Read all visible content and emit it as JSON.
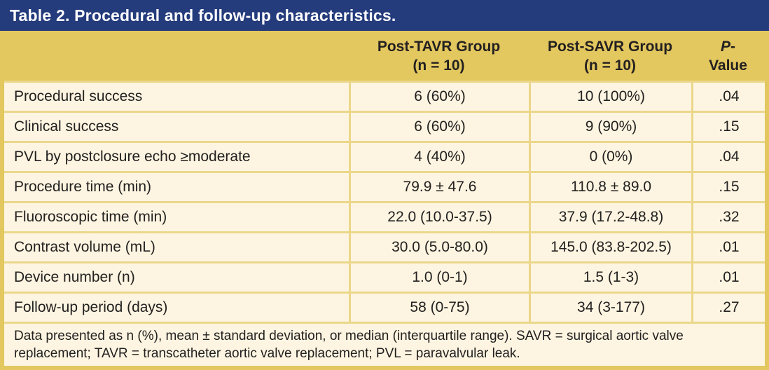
{
  "colors": {
    "title_bar": "#243B7C",
    "title_text": "#FFFFFF",
    "header_gold": "#E3C75F",
    "row_cream": "#FDF5E1",
    "grid_gold": "#EBD78A",
    "text_dark": "#232020"
  },
  "table": {
    "title": "Table 2. Procedural and follow-up characteristics.",
    "headers": {
      "tavr": {
        "line1": "Post-TAVR Group",
        "line2": "(n = 10)"
      },
      "savr": {
        "line1": "Post-SAVR Group",
        "line2": "(n = 10)"
      },
      "p": {
        "italic": "P",
        "suffix": "-",
        "line2": "Value"
      }
    },
    "rows": [
      {
        "label": "Procedural success",
        "tavr": "6 (60%)",
        "savr": "10 (100%)",
        "p": ".04"
      },
      {
        "label": "Clinical success",
        "tavr": "6 (60%)",
        "savr": "9 (90%)",
        "p": ".15"
      },
      {
        "label": "PVL by postclosure echo ≥moderate",
        "tavr": "4 (40%)",
        "savr": "0 (0%)",
        "p": ".04"
      },
      {
        "label": "Procedure time (min)",
        "tavr": "79.9 ± 47.6",
        "savr": "110.8 ± 89.0",
        "p": ".15"
      },
      {
        "label": "Fluoroscopic time (min)",
        "tavr": "22.0 (10.0-37.5)",
        "savr": "37.9 (17.2-48.8)",
        "p": ".32"
      },
      {
        "label": "Contrast volume (mL)",
        "tavr": "30.0 (5.0-80.0)",
        "savr": "145.0 (83.8-202.5)",
        "p": ".01"
      },
      {
        "label": "Device number (n)",
        "tavr": "1.0 (0-1)",
        "savr": "1.5 (1-3)",
        "p": ".01"
      },
      {
        "label": "Follow-up period (days)",
        "tavr": "58 (0-75)",
        "savr": "34 (3-177)",
        "p": ".27"
      }
    ],
    "footnote": "Data presented as n (%), mean ± standard deviation, or median (interquartile range). SAVR = surgical aortic valve replacement; TAVR = transcatheter aortic valve replacement; PVL = paravalvular leak."
  }
}
